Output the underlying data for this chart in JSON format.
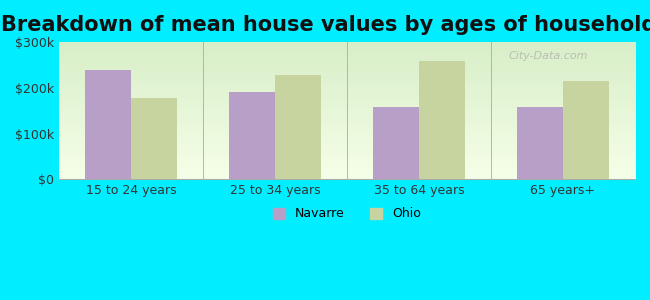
{
  "title": "Breakdown of mean house values by ages of householders",
  "categories": [
    "15 to 24 years",
    "25 to 34 years",
    "35 to 64 years",
    "65 years+"
  ],
  "navarre_values": [
    240000,
    192000,
    158000,
    158000
  ],
  "ohio_values": [
    178000,
    228000,
    258000,
    215000
  ],
  "navarre_color": "#b89fc8",
  "ohio_color": "#c8d4a0",
  "background_color": "#00eeff",
  "ylim": [
    0,
    300000
  ],
  "yticks": [
    0,
    100000,
    200000,
    300000
  ],
  "ytick_labels": [
    "$0",
    "$100k",
    "$200k",
    "$300k"
  ],
  "title_fontsize": 15,
  "legend_labels": [
    "Navarre",
    "Ohio"
  ],
  "watermark": "City-Data.com"
}
